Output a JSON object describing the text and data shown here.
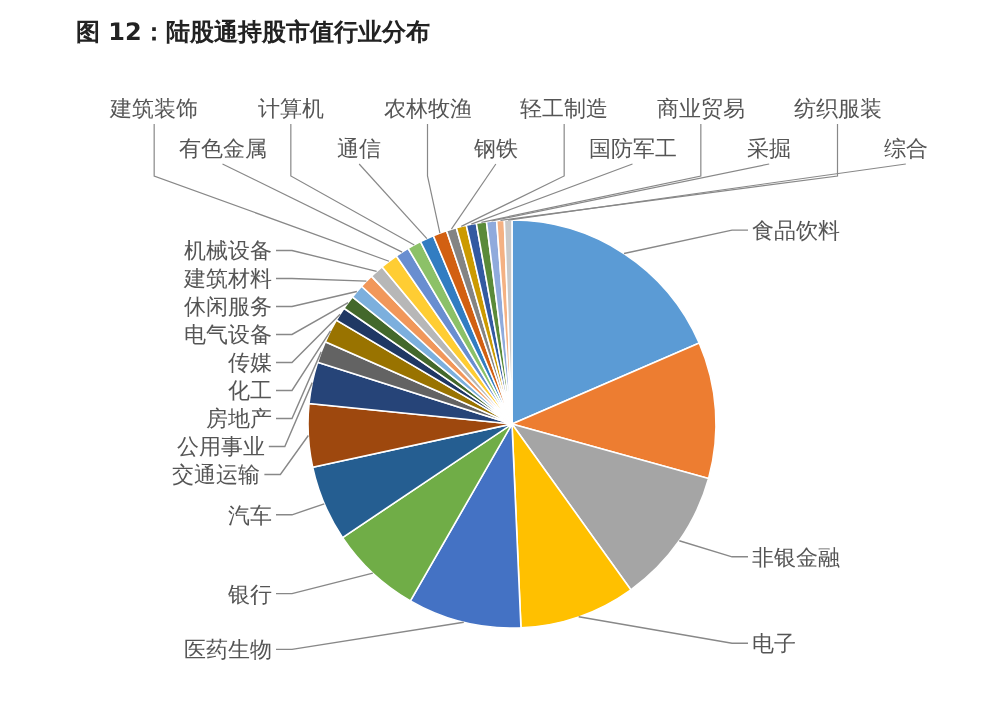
{
  "chart_data": {
    "type": "pie",
    "title": "图 12：陆股通持股市值行业分布",
    "categories": [
      "食品饮料",
      null,
      "非银金融",
      "电子",
      "医药生物",
      "银行",
      "汽车",
      "交通运输",
      "公用事业",
      "房地产",
      "化工",
      "传媒",
      "电气设备",
      "休闲服务",
      "建筑材料",
      "机械设备",
      "建筑装饰",
      "有色金属",
      "计算机",
      "通信",
      "农林牧渔",
      "钢铁",
      "轻工制造",
      "国防军工",
      "商业贸易",
      "采掘",
      "纺织服装",
      "综合"
    ],
    "values": [
      18.5,
      10.8,
      10.8,
      9.2,
      9.0,
      7.3,
      6.0,
      5.0,
      3.3,
      1.7,
      1.9,
      1.1,
      1.1,
      1.1,
      1.1,
      1.1,
      1.4,
      1.1,
      1.1,
      1.1,
      1.1,
      0.8,
      0.8,
      0.8,
      0.8,
      0.8,
      0.6,
      0.6
    ],
    "colors": [
      "#5b9bd5",
      "#ed7d31",
      "#a5a5a5",
      "#ffc000",
      "#4472c4",
      "#70ad47",
      "#255e91",
      "#9e480e",
      "#264478",
      "#636363",
      "#997300",
      "#1f3864",
      "#43682b",
      "#7cafdd",
      "#f1975a",
      "#b7b7b7",
      "#ffcd33",
      "#698ed0",
      "#8cc168",
      "#327dc2",
      "#d26012",
      "#848484",
      "#cc9a00",
      "#335aa1",
      "#5a8a39",
      "#8faadc",
      "#f4b183",
      "#c9c9c9"
    ]
  }
}
